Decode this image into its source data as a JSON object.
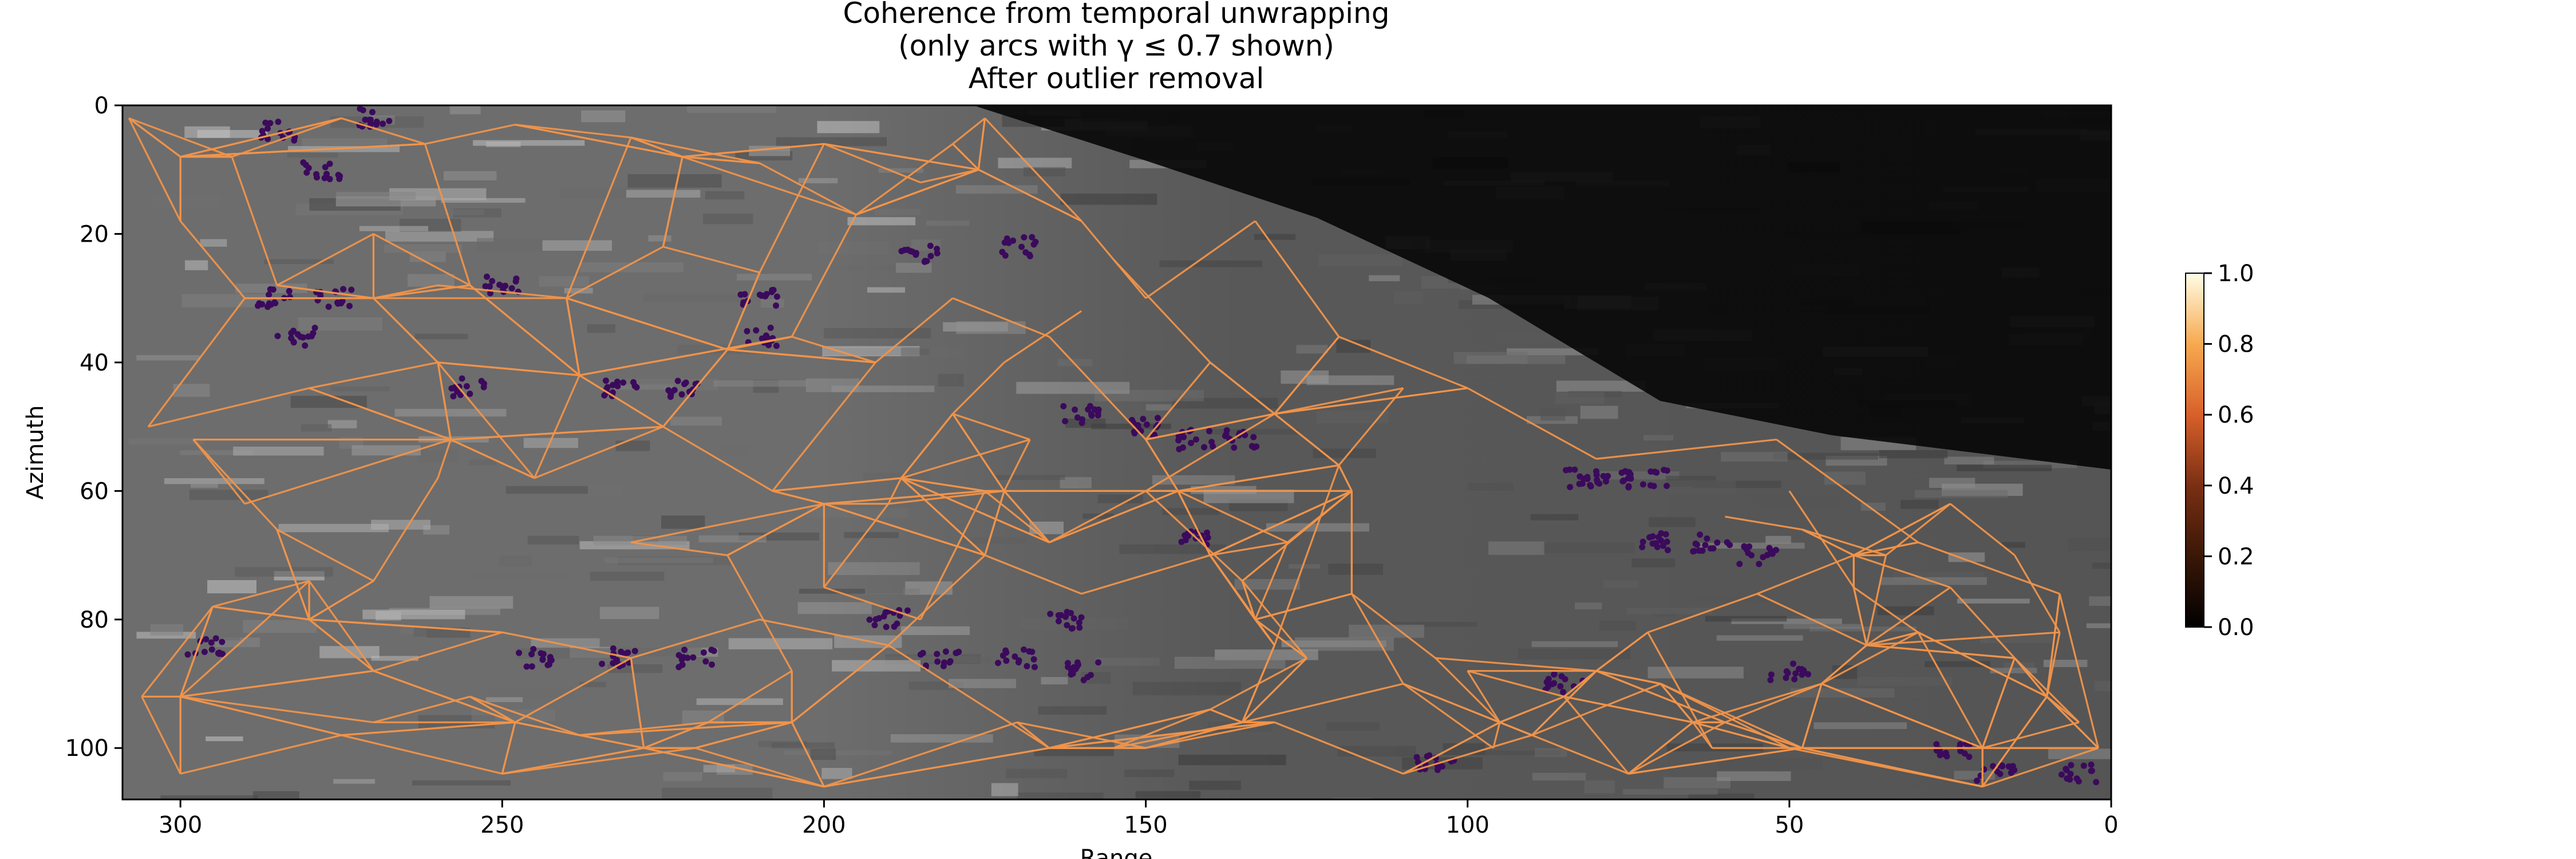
{
  "chart_data": {
    "type": "scatter",
    "title_lines": [
      "Coherence from temporal unwrapping",
      "(only arcs with γ ≤  0.7 shown)",
      "After outlier removal"
    ],
    "xlabel": "Range",
    "ylabel": "Azimuth",
    "xlim": [
      309,
      0
    ],
    "ylim": [
      108,
      0
    ],
    "x_ticks": [
      300,
      250,
      200,
      150,
      100,
      50,
      0
    ],
    "y_ticks": [
      0,
      20,
      40,
      60,
      80,
      100
    ],
    "colorbar": {
      "colormap": "afmhot",
      "range": [
        0.0,
        1.0
      ],
      "ticks": [
        "0.0",
        "0.2",
        "0.4",
        "0.6",
        "0.8",
        "1.0"
      ]
    },
    "background": "grayscale amplitude image",
    "arc_color": "#f0934a",
    "point_color": "#3b0a5c",
    "arcs": [
      [
        308,
        2,
        292,
        8
      ],
      [
        292,
        8,
        275,
        2
      ],
      [
        275,
        2,
        262,
        6
      ],
      [
        262,
        6,
        248,
        3
      ],
      [
        248,
        3,
        230,
        5
      ],
      [
        230,
        5,
        210,
        9
      ],
      [
        210,
        9,
        195,
        17
      ],
      [
        195,
        17,
        180,
        6
      ],
      [
        180,
        6,
        175,
        2
      ],
      [
        175,
        2,
        160,
        18
      ],
      [
        160,
        18,
        150,
        30
      ],
      [
        150,
        30,
        133,
        18
      ],
      [
        133,
        18,
        120,
        36
      ],
      [
        120,
        36,
        100,
        44
      ],
      [
        100,
        44,
        80,
        55
      ],
      [
        80,
        55,
        52,
        52
      ],
      [
        52,
        52,
        30,
        68
      ],
      [
        30,
        68,
        8,
        76
      ],
      [
        8,
        76,
        2,
        100
      ],
      [
        2,
        100,
        20,
        106
      ],
      [
        20,
        106,
        50,
        100
      ],
      [
        50,
        100,
        70,
        90
      ],
      [
        70,
        90,
        90,
        98
      ],
      [
        90,
        98,
        110,
        104
      ],
      [
        110,
        104,
        130,
        96
      ],
      [
        130,
        96,
        150,
        100
      ],
      [
        150,
        100,
        170,
        96
      ],
      [
        170,
        96,
        200,
        106
      ],
      [
        200,
        106,
        220,
        100
      ],
      [
        220,
        100,
        250,
        104
      ],
      [
        250,
        104,
        275,
        98
      ],
      [
        275,
        98,
        300,
        104
      ],
      [
        300,
        104,
        306,
        92
      ],
      [
        306,
        92,
        295,
        78
      ],
      [
        295,
        78,
        280,
        74
      ],
      [
        280,
        74,
        270,
        88
      ],
      [
        270,
        88,
        250,
        82
      ],
      [
        250,
        82,
        230,
        86
      ],
      [
        230,
        86,
        210,
        80
      ],
      [
        210,
        80,
        190,
        84
      ],
      [
        190,
        84,
        175,
        70
      ],
      [
        175,
        70,
        160,
        76
      ],
      [
        160,
        76,
        140,
        70
      ],
      [
        140,
        70,
        130,
        84
      ],
      [
        130,
        84,
        120,
        56
      ],
      [
        120,
        56,
        110,
        44
      ],
      [
        308,
        2,
        300,
        18
      ],
      [
        300,
        18,
        290,
        30
      ],
      [
        290,
        30,
        305,
        50
      ],
      [
        305,
        50,
        280,
        44
      ],
      [
        280,
        44,
        260,
        40
      ],
      [
        260,
        40,
        245,
        58
      ],
      [
        245,
        58,
        225,
        50
      ],
      [
        225,
        50,
        208,
        60
      ],
      [
        208,
        60,
        192,
        40
      ],
      [
        192,
        40,
        180,
        30
      ],
      [
        180,
        30,
        165,
        36
      ],
      [
        165,
        36,
        150,
        52
      ],
      [
        150,
        52,
        140,
        40
      ],
      [
        140,
        40,
        155,
        24
      ],
      [
        260,
        28,
        240,
        30
      ],
      [
        240,
        30,
        225,
        22
      ],
      [
        225,
        22,
        210,
        26
      ],
      [
        210,
        26,
        200,
        6
      ],
      [
        200,
        6,
        185,
        12
      ],
      [
        292,
        8,
        285,
        28
      ],
      [
        285,
        28,
        270,
        20
      ],
      [
        270,
        20,
        255,
        28
      ],
      [
        255,
        28,
        262,
        6
      ],
      [
        230,
        5,
        240,
        30
      ],
      [
        195,
        17,
        205,
        36
      ],
      [
        205,
        36,
        192,
        40
      ],
      [
        190,
        62,
        200,
        75
      ],
      [
        200,
        75,
        185,
        80
      ],
      [
        185,
        80,
        175,
        60
      ],
      [
        175,
        60,
        165,
        68
      ],
      [
        165,
        68,
        150,
        60
      ],
      [
        150,
        60,
        135,
        74
      ],
      [
        135,
        74,
        125,
        86
      ],
      [
        125,
        86,
        140,
        94
      ],
      [
        140,
        94,
        155,
        100
      ],
      [
        50,
        60,
        40,
        75
      ],
      [
        40,
        75,
        30,
        82
      ],
      [
        30,
        82,
        45,
        90
      ],
      [
        45,
        90,
        60,
        96
      ],
      [
        60,
        96,
        75,
        104
      ],
      [
        75,
        104,
        85,
        92
      ],
      [
        85,
        92,
        100,
        88
      ],
      [
        15,
        86,
        5,
        96
      ],
      [
        15,
        86,
        25,
        75
      ],
      [
        260,
        58,
        270,
        74
      ],
      [
        270,
        74,
        285,
        66
      ],
      [
        285,
        66,
        298,
        52
      ],
      [
        298,
        52,
        290,
        62
      ],
      [
        230,
        68,
        215,
        70
      ],
      [
        215,
        70,
        205,
        88
      ],
      [
        205,
        88,
        218,
        96
      ],
      [
        218,
        96,
        238,
        98
      ],
      [
        238,
        98,
        255,
        92
      ],
      [
        255,
        92,
        270,
        96
      ],
      [
        96,
        100,
        110,
        90
      ],
      [
        110,
        90,
        118,
        76
      ],
      [
        118,
        76,
        105,
        86
      ],
      [
        62,
        100,
        72,
        82
      ],
      [
        72,
        82,
        55,
        76
      ],
      [
        160,
        32,
        172,
        40
      ],
      [
        172,
        40,
        180,
        48
      ],
      [
        180,
        48,
        168,
        52
      ],
      [
        140,
        70,
        128,
        68
      ],
      [
        60,
        64,
        48,
        66
      ],
      [
        48,
        66,
        35,
        70
      ],
      [
        35,
        70,
        25,
        62
      ],
      [
        25,
        62,
        15,
        70
      ],
      [
        15,
        70,
        8,
        82
      ]
    ],
    "hubs": [
      [
        300,
        8
      ],
      [
        300,
        92
      ],
      [
        280,
        80
      ],
      [
        270,
        30
      ],
      [
        258,
        52
      ],
      [
        248,
        96
      ],
      [
        238,
        42
      ],
      [
        228,
        100
      ],
      [
        222,
        8
      ],
      [
        215,
        38
      ],
      [
        205,
        96
      ],
      [
        200,
        62
      ],
      [
        188,
        58
      ],
      [
        176,
        10
      ],
      [
        172,
        60
      ],
      [
        165,
        100
      ],
      [
        145,
        60
      ],
      [
        135,
        96
      ],
      [
        133,
        80
      ],
      [
        130,
        48
      ],
      [
        118,
        60
      ],
      [
        65,
        96
      ],
      [
        38,
        84
      ],
      [
        10,
        92
      ],
      [
        20,
        100
      ],
      [
        48,
        100
      ],
      [
        80,
        88
      ],
      [
        95,
        96
      ],
      [
        40,
        70
      ]
    ],
    "point_clusters": [
      [
        285,
        30
      ],
      [
        276,
        30
      ],
      [
        282,
        36
      ],
      [
        250,
        28
      ],
      [
        232,
        44
      ],
      [
        222,
        44
      ],
      [
        210,
        36
      ],
      [
        185,
        23
      ],
      [
        170,
        22
      ],
      [
        160,
        48
      ],
      [
        150,
        50
      ],
      [
        142,
        52
      ],
      [
        135,
        52
      ],
      [
        142,
        67
      ],
      [
        190,
        80
      ],
      [
        182,
        86
      ],
      [
        170,
        86
      ],
      [
        162,
        80
      ],
      [
        210,
        30
      ],
      [
        255,
        44
      ],
      [
        296,
        84
      ],
      [
        245,
        86
      ],
      [
        232,
        86
      ],
      [
        220,
        86
      ],
      [
        82,
        58
      ],
      [
        78,
        58
      ],
      [
        72,
        58
      ],
      [
        70,
        68
      ],
      [
        62,
        68
      ],
      [
        55,
        70
      ],
      [
        85,
        90
      ],
      [
        50,
        88
      ],
      [
        25,
        100
      ],
      [
        18,
        104
      ],
      [
        5,
        104
      ],
      [
        105,
        102
      ],
      [
        160,
        88
      ],
      [
        285,
        4
      ],
      [
        270,
        2
      ],
      [
        278,
        10
      ]
    ]
  }
}
